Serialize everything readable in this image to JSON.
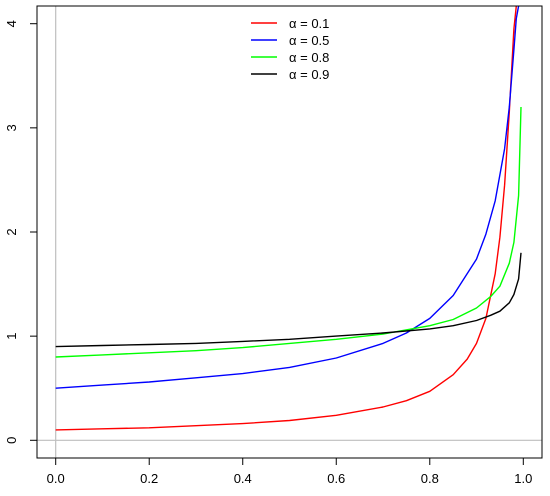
{
  "chart_data": {
    "type": "line",
    "title": "",
    "xlabel": "",
    "ylabel": "",
    "xlim": [
      -0.04,
      1.04
    ],
    "ylim": [
      -0.17,
      4.17
    ],
    "x_ticks": [
      0.0,
      0.2,
      0.4,
      0.6,
      0.8,
      1.0
    ],
    "x_tick_labels": [
      "0.0",
      "0.2",
      "0.4",
      "0.6",
      "0.8",
      "1.0"
    ],
    "y_ticks": [
      0,
      1,
      2,
      3,
      4
    ],
    "y_tick_labels": [
      "0",
      "1",
      "2",
      "3",
      "4"
    ],
    "reference_lines": {
      "x": 0,
      "y": 0,
      "color": "#bebebe"
    },
    "grid": false,
    "legend_position": "top-center",
    "series": [
      {
        "name": "α = 0.1",
        "color": "#ff0000",
        "x": [
          0.0,
          0.1,
          0.2,
          0.3,
          0.4,
          0.5,
          0.6,
          0.7,
          0.75,
          0.8,
          0.85,
          0.88,
          0.9,
          0.92,
          0.94,
          0.95,
          0.96,
          0.97,
          0.98,
          0.985
        ],
        "y": [
          0.1,
          0.11,
          0.12,
          0.14,
          0.16,
          0.19,
          0.24,
          0.32,
          0.38,
          0.47,
          0.63,
          0.78,
          0.93,
          1.17,
          1.6,
          1.95,
          2.45,
          3.15,
          3.95,
          4.17
        ]
      },
      {
        "name": "α = 0.5",
        "color": "#0000ff",
        "x": [
          0.0,
          0.1,
          0.2,
          0.3,
          0.4,
          0.5,
          0.6,
          0.7,
          0.75,
          0.8,
          0.85,
          0.9,
          0.92,
          0.94,
          0.96,
          0.97,
          0.98,
          0.985,
          0.99
        ],
        "y": [
          0.5,
          0.53,
          0.56,
          0.6,
          0.64,
          0.7,
          0.79,
          0.93,
          1.03,
          1.17,
          1.39,
          1.74,
          1.98,
          2.3,
          2.8,
          3.2,
          3.75,
          4.05,
          4.17
        ]
      },
      {
        "name": "α = 0.8",
        "color": "#00ff00",
        "x": [
          0.0,
          0.1,
          0.2,
          0.3,
          0.4,
          0.5,
          0.6,
          0.7,
          0.8,
          0.85,
          0.9,
          0.93,
          0.95,
          0.97,
          0.98,
          0.99,
          0.995
        ],
        "y": [
          0.8,
          0.82,
          0.84,
          0.86,
          0.89,
          0.93,
          0.97,
          1.02,
          1.1,
          1.16,
          1.27,
          1.38,
          1.48,
          1.7,
          1.9,
          2.35,
          3.2
        ]
      },
      {
        "name": "α = 0.9",
        "color": "#000000",
        "x": [
          0.0,
          0.1,
          0.2,
          0.3,
          0.4,
          0.5,
          0.6,
          0.7,
          0.8,
          0.85,
          0.9,
          0.93,
          0.95,
          0.97,
          0.98,
          0.99,
          0.995
        ],
        "y": [
          0.9,
          0.91,
          0.92,
          0.93,
          0.95,
          0.97,
          1.0,
          1.03,
          1.07,
          1.1,
          1.15,
          1.2,
          1.24,
          1.32,
          1.4,
          1.55,
          1.8
        ]
      }
    ]
  }
}
